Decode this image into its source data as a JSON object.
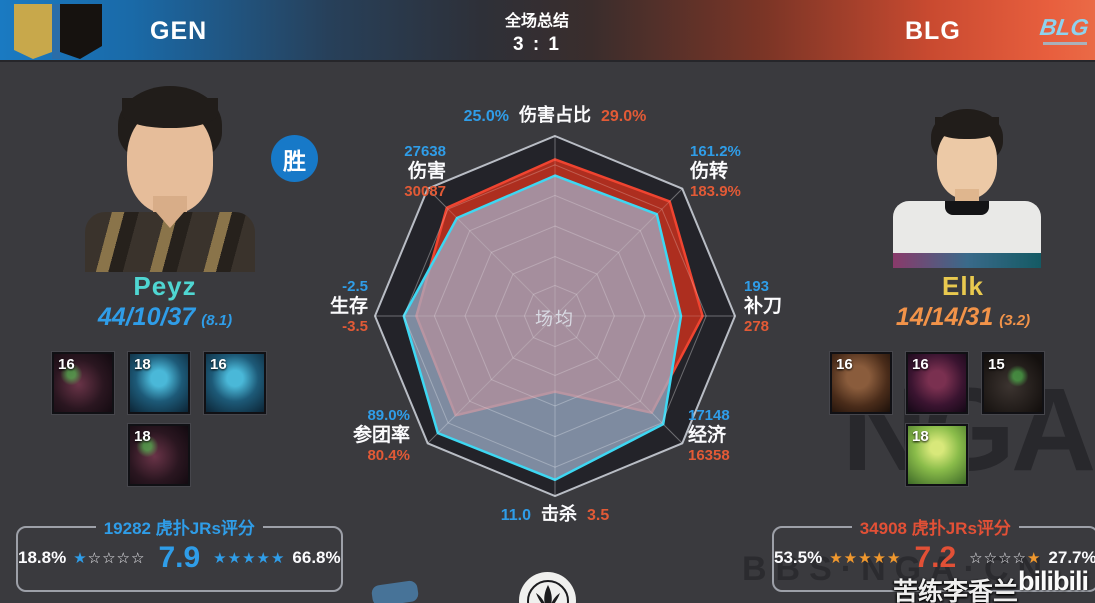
{
  "header": {
    "left_team": "GEN",
    "title": "全场总结",
    "score": "3 : 1",
    "right_team": "BLG",
    "corner_logo": "BLG",
    "left_color": "#1a7ac2",
    "right_color": "#e85f3e"
  },
  "left_player": {
    "name": "Peyz",
    "kda": "44/10/37",
    "ratio": "(8.1)",
    "badge": "胜",
    "champions": [
      {
        "level": "16"
      },
      {
        "level": "18"
      },
      {
        "level": "16"
      },
      {
        "level": "18"
      }
    ],
    "rating": {
      "votes": "19282",
      "label": "虎扑JRs评分",
      "low_pct": "18.8%",
      "low_filled": "★",
      "low_empty": "☆☆☆☆",
      "score": "7.9",
      "high_empty": "",
      "high_filled": "★★★★★",
      "high_pct": "66.8%"
    }
  },
  "right_player": {
    "name": "Elk",
    "kda": "14/14/31",
    "ratio": "(3.2)",
    "champions": [
      {
        "level": "16"
      },
      {
        "level": "16"
      },
      {
        "level": "15"
      },
      {
        "level": "18"
      }
    ],
    "rating": {
      "votes": "34908",
      "label": "虎扑JRs评分",
      "low_pct": "53.5%",
      "low_filled": "★★★★★",
      "low_empty": "",
      "score": "7.2",
      "high_empty": "☆☆☆☆",
      "high_filled": "★",
      "high_pct": "27.7%"
    }
  },
  "chart_data": {
    "type": "radar",
    "center_label": "场均",
    "axes": [
      {
        "name": "伤害占比",
        "blue": "25.0%",
        "red": "29.0%"
      },
      {
        "name": "伤转",
        "blue": "161.2%",
        "red": "183.9%"
      },
      {
        "name": "补刀",
        "blue": "193",
        "red": "278"
      },
      {
        "name": "经济",
        "blue": "17148",
        "red": "16358"
      },
      {
        "name": "击杀",
        "blue": "11.0",
        "red": "3.5"
      },
      {
        "name": "参团率",
        "blue": "89.0%",
        "red": "80.4%"
      },
      {
        "name": "生存",
        "blue": "-2.5",
        "red": "-3.5"
      },
      {
        "name": "伤害",
        "blue": "27638",
        "red": "30087"
      }
    ],
    "series": [
      {
        "name": "GEN Peyz",
        "color": "#3ed7f2",
        "fill": "rgba(162,180,206,0.72)",
        "norm": [
          0.78,
          0.8,
          0.7,
          0.85,
          0.91,
          0.92,
          0.84,
          0.77
        ]
      },
      {
        "name": "BLG Elk",
        "color": "#ef4430",
        "fill": "rgba(186,48,30,0.92)",
        "norm": [
          0.87,
          0.9,
          0.82,
          0.76,
          0.42,
          0.78,
          0.77,
          0.85
        ]
      }
    ],
    "blue_color": "#2f9de8",
    "red_color": "#e25a36",
    "legend_position": "none",
    "grid": true
  },
  "watermarks": {
    "nga": "NGA",
    "bbs": "BBS·NGA·CN",
    "uploader": "苦练李香兰",
    "bilibili": "bilibili"
  }
}
